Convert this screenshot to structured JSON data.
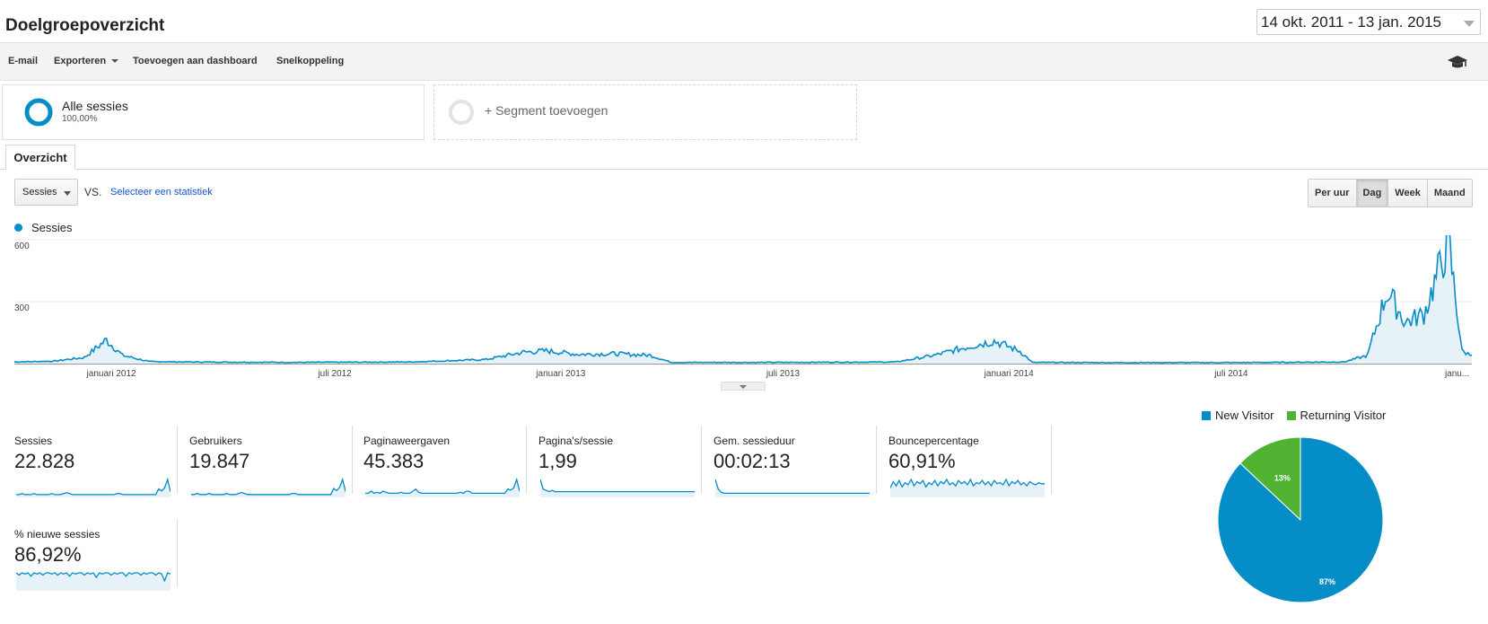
{
  "page": {
    "title": "Doelgroepoverzicht",
    "date_range": "14 okt. 2011 - 13 jan. 2015"
  },
  "toolbar": {
    "email": "E-mail",
    "export": "Exporteren",
    "add_dashboard": "Toevoegen aan dashboard",
    "shortcut": "Snelkoppeling",
    "help_icon": "graduation-cap-icon"
  },
  "segments": {
    "all_sessions_label": "Alle sessies",
    "all_sessions_pct": "100,00%",
    "add_segment": "+ Segment toevoegen"
  },
  "tabs": {
    "overview": "Overzicht"
  },
  "controls": {
    "metric": "Sessies",
    "vs": "VS.",
    "select_metric": "Selecteer een statistiek",
    "granularity": [
      "Per uur",
      "Dag",
      "Week",
      "Maand"
    ],
    "granularity_active": "Dag"
  },
  "colors": {
    "series": "#058dc7",
    "new_visitor": "#058dc7",
    "returning_visitor": "#50b432"
  },
  "chart_data": [
    {
      "type": "area",
      "series": [
        {
          "name": "Sessies"
        }
      ],
      "ylim": [
        0,
        600
      ],
      "yticks": [
        "600",
        "300"
      ],
      "xticks": [
        "januari 2012",
        "juli 2012",
        "januari 2013",
        "juli 2013",
        "januari 2014",
        "juli 2014",
        "janu..."
      ],
      "x_range": [
        "2011-10-14",
        "2015-01-13"
      ],
      "points": [
        [
          "2011-10-14",
          8
        ],
        [
          "2011-11-15",
          12
        ],
        [
          "2011-12-10",
          30
        ],
        [
          "2011-12-28",
          115
        ],
        [
          "2012-01-10",
          40
        ],
        [
          "2012-02-01",
          10
        ],
        [
          "2012-03-01",
          8
        ],
        [
          "2012-06-01",
          6
        ],
        [
          "2012-09-01",
          8
        ],
        [
          "2012-11-01",
          20
        ],
        [
          "2012-12-01",
          55
        ],
        [
          "2012-12-20",
          62
        ],
        [
          "2013-01-15",
          45
        ],
        [
          "2013-02-15",
          48
        ],
        [
          "2013-03-15",
          40
        ],
        [
          "2013-04-01",
          6
        ],
        [
          "2013-07-01",
          6
        ],
        [
          "2013-10-01",
          8
        ],
        [
          "2013-11-01",
          40
        ],
        [
          "2013-12-01",
          85
        ],
        [
          "2013-12-20",
          110
        ],
        [
          "2014-01-10",
          60
        ],
        [
          "2014-01-20",
          6
        ],
        [
          "2014-04-01",
          5
        ],
        [
          "2014-07-01",
          5
        ],
        [
          "2014-10-01",
          8
        ],
        [
          "2014-10-20",
          40
        ],
        [
          "2014-11-05",
          350
        ],
        [
          "2014-11-20",
          200
        ],
        [
          "2014-12-05",
          240
        ],
        [
          "2014-12-25",
          590
        ],
        [
          "2015-01-05",
          60
        ],
        [
          "2015-01-13",
          40
        ]
      ]
    },
    {
      "type": "pie",
      "categories": [
        "New Visitor",
        "Returning Visitor"
      ],
      "values": [
        87,
        13
      ],
      "labels": [
        "87%",
        "13%"
      ]
    }
  ],
  "metrics": [
    {
      "label": "Sessies",
      "value": "22.828",
      "spark": [
        2,
        2,
        3,
        2,
        2,
        2,
        3,
        2,
        2,
        2,
        2,
        2,
        3,
        2,
        2,
        2,
        3,
        4,
        3,
        2,
        2,
        2,
        2,
        2,
        2,
        2,
        2,
        2,
        2,
        2,
        2,
        2,
        2,
        2,
        3,
        3,
        2,
        2,
        2,
        2,
        2,
        2,
        2,
        2,
        2,
        2,
        2,
        2,
        8,
        6,
        9,
        18,
        5
      ]
    },
    {
      "label": "Gebruikers",
      "value": "19.847",
      "spark": [
        2,
        2,
        3,
        2,
        2,
        2,
        3,
        2,
        2,
        2,
        2,
        2,
        3,
        2,
        2,
        2,
        3,
        4,
        3,
        2,
        2,
        2,
        2,
        2,
        2,
        2,
        2,
        2,
        2,
        2,
        2,
        2,
        2,
        2,
        3,
        3,
        2,
        2,
        2,
        2,
        2,
        2,
        2,
        2,
        2,
        2,
        2,
        2,
        8,
        6,
        9,
        17,
        5
      ]
    },
    {
      "label": "Paginaweergaven",
      "value": "45.383",
      "spark": [
        3,
        3,
        5,
        3,
        4,
        3,
        5,
        4,
        3,
        3,
        3,
        3,
        4,
        3,
        3,
        3,
        5,
        7,
        4,
        3,
        3,
        3,
        3,
        3,
        3,
        3,
        3,
        3,
        3,
        3,
        3,
        3,
        4,
        3,
        5,
        5,
        3,
        3,
        3,
        3,
        3,
        3,
        3,
        3,
        3,
        3,
        3,
        3,
        7,
        6,
        8,
        16,
        5
      ]
    },
    {
      "label": "Pagina's/sessie",
      "value": "1,99",
      "spark": [
        14,
        6,
        5,
        4,
        5,
        4,
        4,
        4,
        4,
        4,
        4,
        4,
        4,
        4,
        4,
        4,
        4,
        4,
        4,
        4,
        4,
        4,
        4,
        4,
        4,
        4,
        4,
        4,
        4,
        4,
        4,
        4,
        4,
        4,
        4,
        4,
        4,
        4,
        4,
        4,
        4,
        4,
        4,
        4,
        4,
        4,
        4,
        4,
        4,
        4,
        4,
        4,
        4
      ]
    },
    {
      "label": "Gem. sessieduur",
      "value": "00:02:13",
      "spark": [
        16,
        7,
        4,
        3,
        3,
        3,
        3,
        3,
        3,
        3,
        3,
        3,
        3,
        3,
        3,
        3,
        3,
        3,
        3,
        3,
        3,
        3,
        3,
        3,
        3,
        3,
        3,
        3,
        3,
        3,
        3,
        3,
        3,
        3,
        3,
        3,
        3,
        3,
        3,
        3,
        3,
        3,
        3,
        3,
        3,
        3,
        3,
        3,
        3,
        3,
        3,
        3,
        3
      ]
    },
    {
      "label": "Bouncepercentage",
      "value": "60,91%",
      "spark": [
        8,
        14,
        10,
        15,
        9,
        13,
        11,
        16,
        10,
        14,
        12,
        15,
        9,
        13,
        11,
        15,
        10,
        14,
        12,
        16,
        11,
        13,
        10,
        15,
        12,
        14,
        11,
        16,
        10,
        13,
        12,
        15,
        11,
        14,
        10,
        15,
        12,
        13,
        11,
        16,
        10,
        14,
        12,
        15,
        11,
        13,
        10,
        14,
        12,
        11,
        13,
        12,
        12
      ]
    },
    {
      "label": "% nieuwe sessies",
      "value": "86,92%",
      "spark": [
        15,
        13,
        15,
        14,
        15,
        12,
        15,
        14,
        15,
        13,
        15,
        15,
        14,
        15,
        13,
        15,
        14,
        15,
        12,
        15,
        14,
        15,
        15,
        13,
        15,
        14,
        15,
        11,
        15,
        14,
        15,
        15,
        13,
        15,
        14,
        15,
        15,
        12,
        15,
        14,
        15,
        15,
        13,
        15,
        14,
        15,
        15,
        13,
        15,
        14,
        8,
        15,
        14
      ]
    }
  ]
}
